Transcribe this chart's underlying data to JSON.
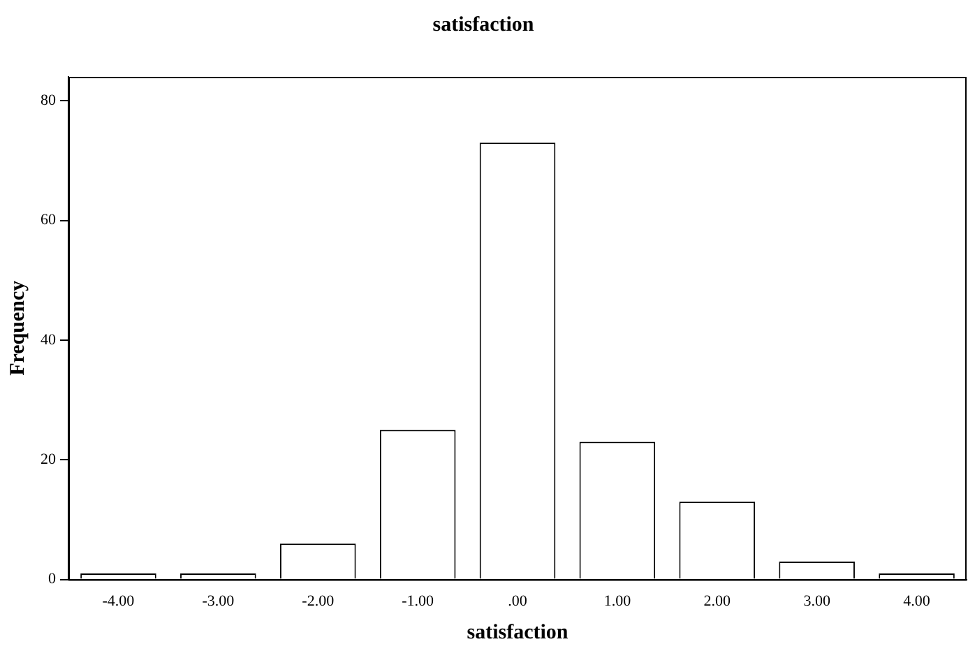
{
  "chart_data": {
    "type": "bar",
    "title": "satisfaction",
    "xlabel": "satisfaction",
    "ylabel": "Frequency",
    "categories": [
      "-4.00",
      "-3.00",
      "-2.00",
      "-1.00",
      ".00",
      "1.00",
      "2.00",
      "3.00",
      "4.00"
    ],
    "values": [
      1,
      1,
      6,
      25,
      73,
      23,
      13,
      3,
      1
    ],
    "color": "#ffffff",
    "ylim": [
      0,
      84
    ],
    "yticks": [
      0,
      20,
      40,
      60,
      80
    ],
    "grid": false,
    "legend": false
  }
}
